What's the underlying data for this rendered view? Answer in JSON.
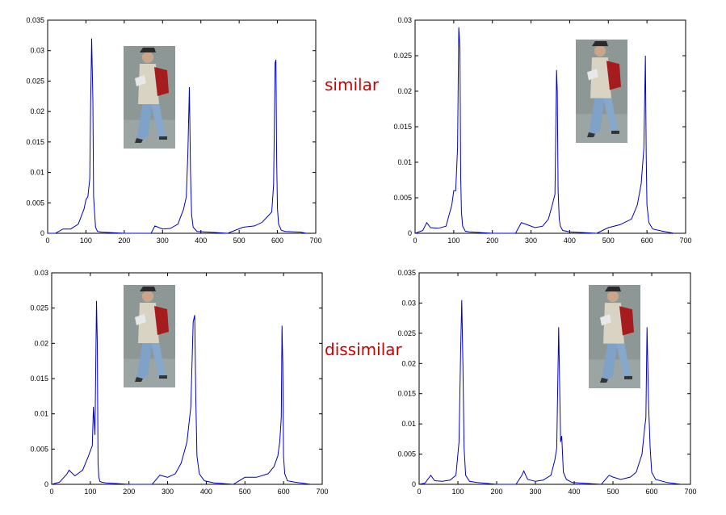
{
  "annotations": {
    "top": "similar",
    "bottom": "dissimilar"
  },
  "colors": {
    "line": "#0000cc",
    "annotation": "#cc0000",
    "axis": "#000000"
  },
  "chart_data": [
    {
      "type": "line",
      "position_label": "top-left",
      "xlim": [
        0,
        700
      ],
      "ylim": [
        0,
        0.035
      ],
      "xticks": [
        0,
        100,
        200,
        300,
        400,
        500,
        600,
        700
      ],
      "yticks": [
        0,
        0.005,
        0.01,
        0.015,
        0.02,
        0.025,
        0.03,
        0.035
      ],
      "xtick_labels": [
        "0",
        "100",
        "200",
        "300",
        "400",
        "500",
        "600",
        "700"
      ],
      "ytick_labels": [
        "0",
        "0.005",
        "0.01",
        "0.015",
        "0.02",
        "0.025",
        "0.03",
        "0.035"
      ],
      "inset_image": "pedestrian-photo-1",
      "series": [
        {
          "x": [
            0,
            20,
            40,
            60,
            80,
            95,
            100,
            105,
            110,
            112,
            115,
            118,
            120,
            125,
            130,
            140,
            200,
            230,
            255,
            270,
            280,
            300,
            320,
            340,
            355,
            362,
            366,
            370,
            373,
            376,
            380,
            390,
            420,
            470,
            510,
            540,
            560,
            575,
            585,
            590,
            594,
            596,
            598,
            600,
            603,
            610,
            620,
            660,
            675
          ],
          "y": [
            0,
            0,
            0.0007,
            0.0007,
            0.0015,
            0.004,
            0.0055,
            0.006,
            0.009,
            0.02,
            0.032,
            0.022,
            0.006,
            0.001,
            0.0003,
            0.0002,
            0,
            0,
            0,
            0,
            0.0012,
            0.0007,
            0.0008,
            0.0015,
            0.004,
            0.006,
            0.013,
            0.024,
            0.01,
            0.003,
            0.001,
            0.0003,
            0.0002,
            0,
            0.001,
            0.0012,
            0.0018,
            0.0028,
            0.0035,
            0.008,
            0.028,
            0.0285,
            0.012,
            0.004,
            0.0015,
            0.0005,
            0.0003,
            0.0002,
            0
          ]
        }
      ]
    },
    {
      "type": "line",
      "position_label": "top-right",
      "xlim": [
        0,
        700
      ],
      "ylim": [
        0,
        0.03
      ],
      "xticks": [
        0,
        100,
        200,
        300,
        400,
        500,
        600,
        700
      ],
      "yticks": [
        0,
        0.005,
        0.01,
        0.015,
        0.02,
        0.025,
        0.03
      ],
      "xtick_labels": [
        "0",
        "100",
        "200",
        "300",
        "400",
        "500",
        "600",
        "700"
      ],
      "ytick_labels": [
        "0",
        "0.005",
        "0.01",
        "0.015",
        "0.02",
        "0.025",
        "0.03"
      ],
      "inset_image": "pedestrian-photo-2",
      "series": [
        {
          "x": [
            0,
            20,
            30,
            40,
            60,
            80,
            95,
            100,
            105,
            110,
            113,
            116,
            118,
            120,
            123,
            130,
            140,
            200,
            260,
            275,
            290,
            310,
            330,
            345,
            355,
            362,
            366,
            368,
            370,
            373,
            376,
            382,
            400,
            470,
            500,
            530,
            560,
            575,
            585,
            592,
            596,
            598,
            600,
            605,
            615,
            640,
            670
          ],
          "y": [
            0,
            0.0004,
            0.0015,
            0.0008,
            0.0007,
            0.001,
            0.004,
            0.006,
            0.006,
            0.012,
            0.029,
            0.026,
            0.008,
            0.003,
            0.001,
            0.0003,
            0.0002,
            0,
            0,
            0.0015,
            0.0012,
            0.0008,
            0.001,
            0.002,
            0.004,
            0.0055,
            0.023,
            0.02,
            0.006,
            0.002,
            0.001,
            0.0004,
            0.0002,
            0,
            0.0008,
            0.0012,
            0.002,
            0.004,
            0.007,
            0.012,
            0.025,
            0.011,
            0.004,
            0.0015,
            0.0006,
            0.0003,
            0
          ]
        }
      ]
    },
    {
      "type": "line",
      "position_label": "bottom-left",
      "xlim": [
        0,
        700
      ],
      "ylim": [
        0,
        0.03
      ],
      "xticks": [
        0,
        100,
        200,
        300,
        400,
        500,
        600,
        700
      ],
      "yticks": [
        0,
        0.005,
        0.01,
        0.015,
        0.02,
        0.025,
        0.03
      ],
      "xtick_labels": [
        "0",
        "100",
        "200",
        "300",
        "400",
        "500",
        "600",
        "700"
      ],
      "ytick_labels": [
        "0",
        "0.005",
        "0.01",
        "0.015",
        "0.02",
        "0.025",
        "0.03"
      ],
      "inset_image": "pedestrian-photo-1",
      "series": [
        {
          "x": [
            0,
            20,
            40,
            45,
            60,
            80,
            95,
            105,
            108,
            112,
            116,
            118,
            120,
            122,
            125,
            130,
            140,
            200,
            260,
            280,
            300,
            320,
            335,
            350,
            360,
            366,
            370,
            373,
            376,
            382,
            395,
            420,
            470,
            500,
            530,
            560,
            575,
            585,
            590,
            594,
            596,
            598,
            600,
            603,
            610,
            630,
            670
          ],
          "y": [
            0,
            0.0003,
            0.0015,
            0.002,
            0.0012,
            0.002,
            0.004,
            0.0055,
            0.011,
            0.007,
            0.026,
            0.02,
            0.003,
            0.001,
            0.0004,
            0.0003,
            0.0002,
            0,
            0,
            0.0013,
            0.001,
            0.0015,
            0.003,
            0.006,
            0.011,
            0.023,
            0.024,
            0.012,
            0.004,
            0.0015,
            0.0005,
            0.0002,
            0,
            0.001,
            0.001,
            0.0015,
            0.0025,
            0.004,
            0.006,
            0.0095,
            0.0225,
            0.017,
            0.004,
            0.0015,
            0.0005,
            0.0003,
            0
          ]
        }
      ]
    },
    {
      "type": "line",
      "position_label": "bottom-right",
      "xlim": [
        0,
        700
      ],
      "ylim": [
        0,
        0.035
      ],
      "xticks": [
        0,
        100,
        200,
        300,
        400,
        500,
        600,
        700
      ],
      "yticks": [
        0,
        0.005,
        0.01,
        0.015,
        0.02,
        0.025,
        0.03,
        0.035
      ],
      "xtick_labels": [
        "0",
        "100",
        "200",
        "300",
        "400",
        "500",
        "600",
        "700"
      ],
      "ytick_labels": [
        "0",
        "0.005",
        "0.01",
        "0.015",
        "0.02",
        "0.025",
        "0.03",
        "0.035"
      ],
      "inset_image": "pedestrian-photo-3",
      "series": [
        {
          "x": [
            0,
            15,
            30,
            40,
            60,
            80,
            95,
            100,
            103,
            107,
            110,
            113,
            116,
            120,
            130,
            150,
            200,
            250,
            265,
            270,
            280,
            300,
            320,
            340,
            350,
            355,
            360,
            362,
            365,
            368,
            372,
            380,
            395,
            420,
            470,
            490,
            500,
            520,
            545,
            560,
            575,
            582,
            585,
            588,
            592,
            596,
            600,
            610,
            640,
            675
          ],
          "y": [
            0,
            0.0002,
            0.0015,
            0.0006,
            0.0005,
            0.0007,
            0.0015,
            0.005,
            0.007,
            0.022,
            0.0305,
            0.02,
            0.006,
            0.0015,
            0.0005,
            0.0003,
            0,
            0,
            0.0015,
            0.0022,
            0.0008,
            0.0005,
            0.0007,
            0.0015,
            0.004,
            0.006,
            0.026,
            0.018,
            0.007,
            0.008,
            0.002,
            0.0008,
            0.0003,
            0.0002,
            0,
            0.0015,
            0.0012,
            0.0008,
            0.0012,
            0.002,
            0.005,
            0.0095,
            0.011,
            0.026,
            0.013,
            0.006,
            0.002,
            0.0008,
            0.0003,
            0
          ]
        }
      ]
    }
  ]
}
